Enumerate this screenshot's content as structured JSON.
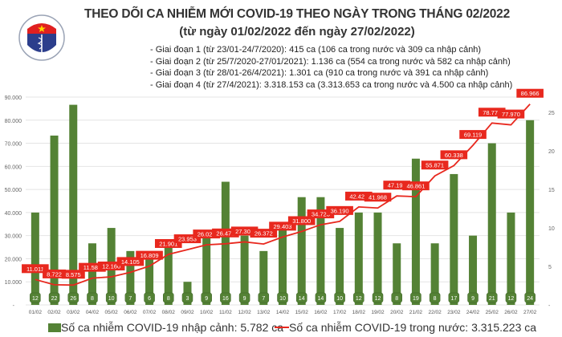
{
  "header": {
    "title": "THEO DÕI CA NHIỄM MỚI COVID-19 THEO NGÀY TRONG THÁNG 02/2022",
    "subtitle": "(từ ngày 01/02/2022 đến ngày 27/02/2022)",
    "notes": [
      "- Giai đoạn 1 (từ 23/01-24/7/2020): 415 ca (106 ca trong nước và 309 ca nhập cảnh)",
      "- Giai đoạn 2 (từ 25/7/2020-27/01/2021): 1.136 ca (554 ca trong nước và 582 ca nhập cảnh)",
      "- Giai đoạn 3 (từ 28/01-26/4/2021): 1.301 ca (910 ca trong nước và 391 ca nhập cảnh)",
      "- Giai đoạn 4 (từ 27/4/2021): 3.318.153 ca (3.313.653 ca trong nước và 4.500 ca nhập cảnh)"
    ],
    "logo_text": "BỘ Y TẾ"
  },
  "chart_data": {
    "type": "bar+line",
    "categories": [
      "01/02",
      "02/02",
      "03/02",
      "04/02",
      "05/02",
      "06/02",
      "07/02",
      "08/02",
      "09/02",
      "10/02",
      "11/02",
      "12/02",
      "13/02",
      "14/02",
      "15/02",
      "16/02",
      "17/02",
      "18/02",
      "19/02",
      "20/02",
      "21/02",
      "22/02",
      "23/02",
      "24/02",
      "25/02",
      "26/02",
      "27/02"
    ],
    "series": [
      {
        "name": "Số ca nhiễm COVID-19 nhập cảnh: 5.782 ca",
        "type": "bar",
        "axis": "right",
        "color": "#548235",
        "values": [
          12,
          22,
          26,
          8,
          10,
          7,
          6,
          8,
          3,
          9,
          16,
          9,
          7,
          10,
          14,
          14,
          10,
          12,
          12,
          8,
          19,
          8,
          17,
          9,
          21,
          12,
          24
        ]
      },
      {
        "name": "Số ca nhiễm COVID-19 trong nước: 3.315.223 ca",
        "type": "line",
        "axis": "left",
        "color": "#e8281e",
        "values": [
          11011,
          8722,
          8575,
          11586,
          12160,
          14105,
          16809,
          21901,
          23953,
          26023,
          26471,
          27302,
          26372,
          29403,
          31800,
          34723,
          36190,
          42427,
          41968,
          47192,
          46861,
          55871,
          60338,
          69119,
          78774,
          77970,
          86966
        ],
        "labels": [
          "11.011",
          "8.722",
          "8.575",
          "11.586",
          "12.160",
          "14.105",
          "16.809",
          "21.901",
          "23.953",
          "26.023",
          "26.471",
          "27.302",
          "26.372",
          "29.403",
          "31.800",
          "34.723",
          "36.190",
          "42.427",
          "41.968",
          "47.192",
          "46.861",
          "55.871",
          "60.338",
          "69.119",
          "78.774",
          "77.970",
          "86.966"
        ]
      }
    ],
    "left_axis": {
      "range": [
        0,
        90000
      ],
      "ticks": [
        "-",
        "10.000",
        "20.000",
        "30.000",
        "40.000",
        "50.000",
        "60.000",
        "70.000",
        "80.000",
        "90.000"
      ]
    },
    "right_axis": {
      "range": [
        0,
        27
      ],
      "ticks": [
        "-",
        "5",
        "10",
        "15",
        "20",
        "25"
      ]
    },
    "grid": true,
    "legend": "bottom"
  }
}
